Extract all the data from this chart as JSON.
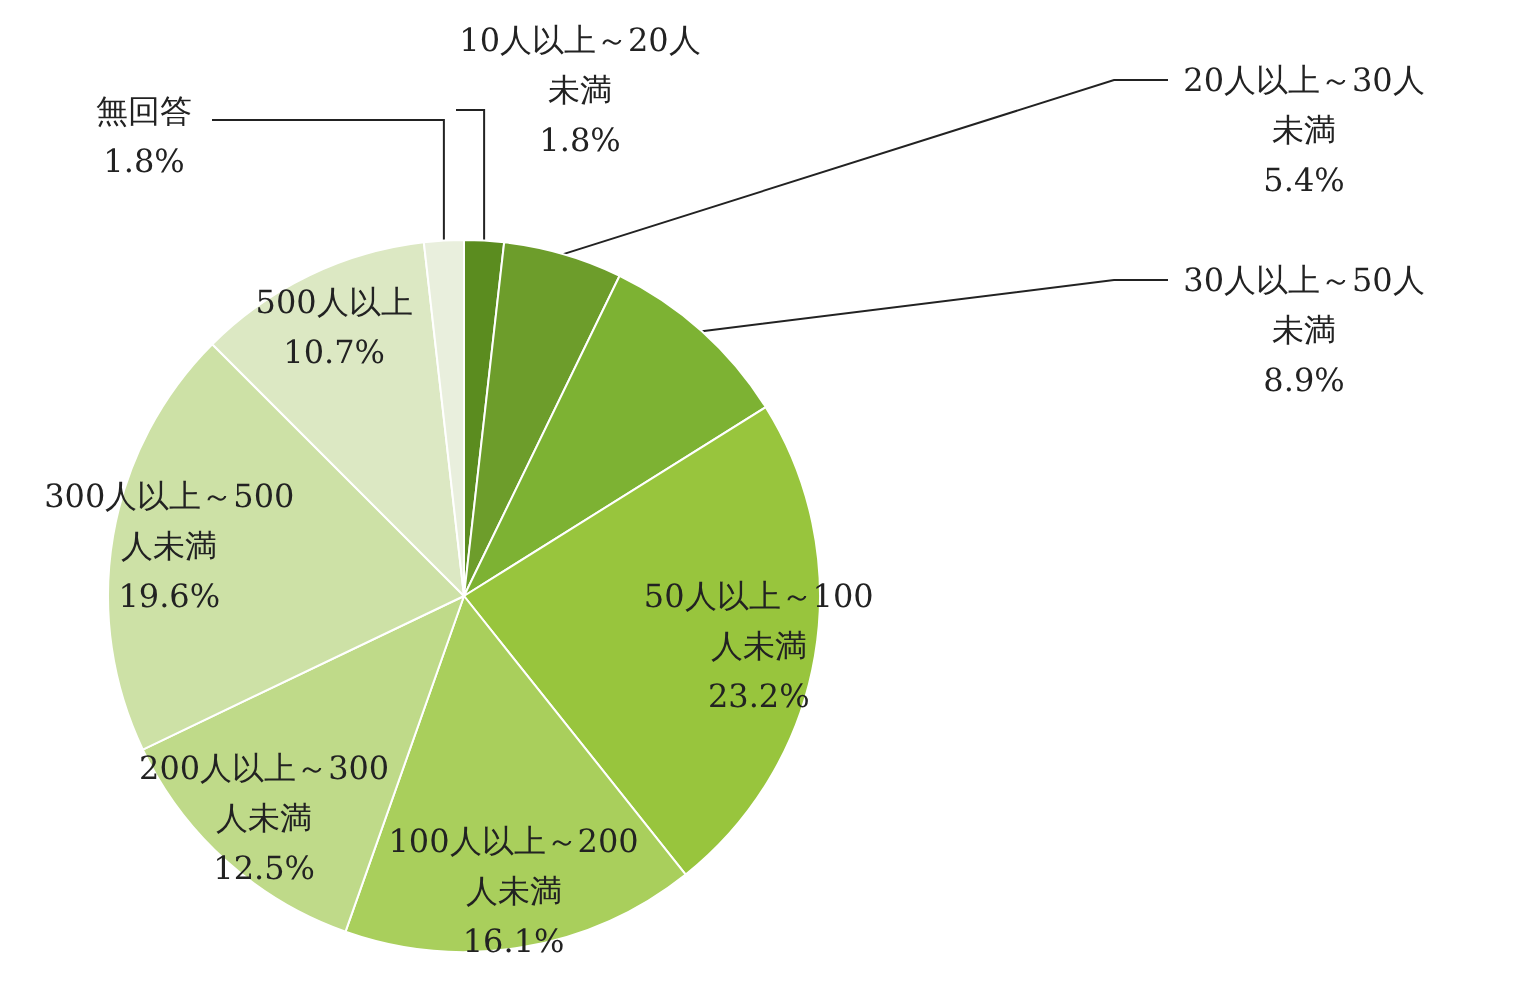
{
  "chart_data": {
    "type": "pie",
    "categories": [
      "10人以上～20人未満",
      "20人以上～30人未満",
      "30人以上～50人未満",
      "50人以上～100人未満",
      "100人以上～200人未満",
      "200人以上～300人未満",
      "300人以上～500人未満",
      "500人以上",
      "無回答"
    ],
    "values": [
      1.8,
      5.4,
      8.9,
      23.2,
      16.1,
      12.5,
      19.6,
      10.7,
      1.8
    ],
    "value_labels": [
      "1.8%",
      "5.4%",
      "8.9%",
      "23.2%",
      "16.1%",
      "12.5%",
      "19.6%",
      "10.7%",
      "1.8%"
    ],
    "colors": [
      "#5b8c1f",
      "#6d9d2b",
      "#7db233",
      "#98c53d",
      "#a9cf5c",
      "#bfda89",
      "#cde1a6",
      "#dce8c3",
      "#e9efdd"
    ],
    "legend": false
  }
}
